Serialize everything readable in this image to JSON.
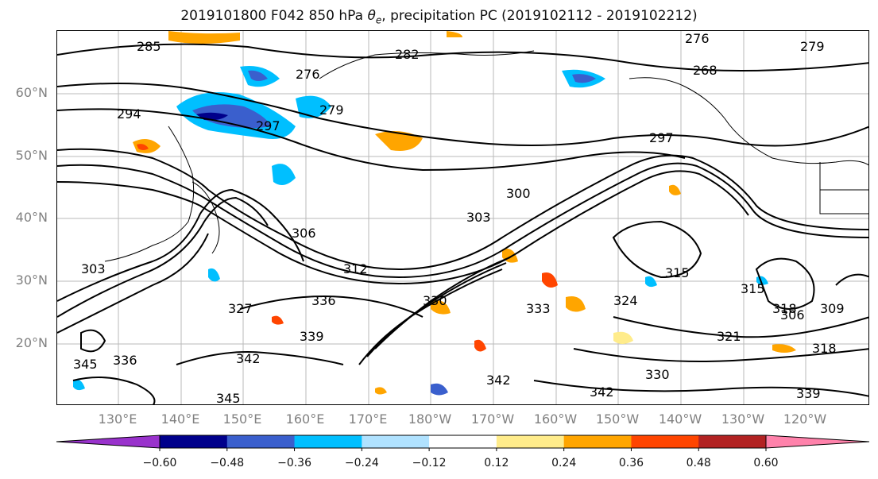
{
  "title": "2019101800 F042 850 hPa θe, precipitation PC (2019102112 - 2019102212)",
  "map": {
    "lat_labels": [
      "60°N",
      "50°N",
      "40°N",
      "30°N",
      "20°N"
    ],
    "lon_labels": [
      "130°E",
      "140°E",
      "150°E",
      "160°E",
      "170°E",
      "180°W",
      "170°W",
      "160°W",
      "150°W",
      "140°W",
      "130°W",
      "120°W"
    ],
    "contour_labels": [
      "285",
      "276",
      "279",
      "294",
      "297",
      "282",
      "279",
      "276",
      "268",
      "297",
      "300",
      "303",
      "306",
      "312",
      "315",
      "315",
      "318",
      "321",
      "324",
      "327",
      "330",
      "333",
      "336",
      "339",
      "342",
      "345",
      "336",
      "342",
      "345",
      "306",
      "309",
      "303",
      "330",
      "342",
      "339",
      "318"
    ]
  },
  "colorbar": {
    "tick_labels": [
      "−0.60",
      "−0.48",
      "−0.36",
      "−0.24",
      "−0.12",
      "0.12",
      "0.24",
      "0.36",
      "0.48",
      "0.60"
    ],
    "colors": [
      "#9932cc",
      "#00008b",
      "#3a5fcd",
      "#00bfff",
      "#b0e2ff",
      "#ffffff",
      "#ffec8b",
      "#ffa500",
      "#ff4500",
      "#b22222",
      "#ff82ab"
    ]
  }
}
